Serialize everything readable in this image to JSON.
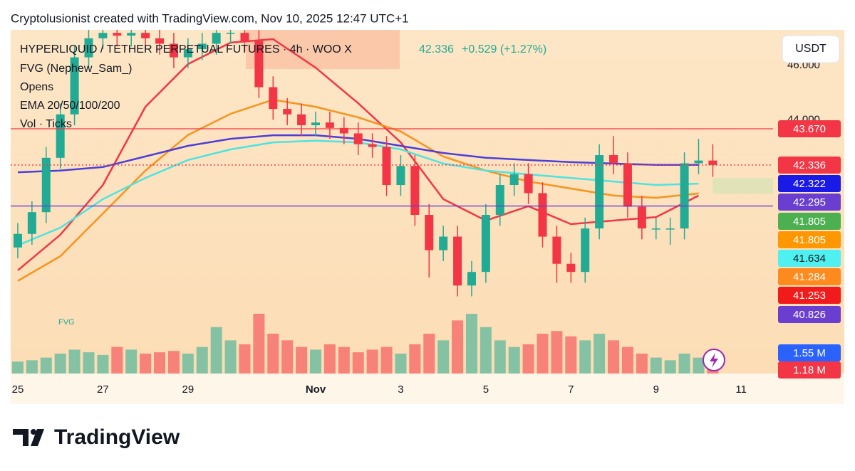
{
  "header": "Cryptolusionist created with TradingView.com, Nov 10, 2025 12:47 UTC+1",
  "footer": {
    "brand": "TradingView"
  },
  "chart_data": {
    "type": "candlestick",
    "legend": {
      "symbol": "HYPERLIQUID / TETHER PERPETUAL FUTURES · 4h · WOO X",
      "change": "+0.529 (+1.27%)",
      "indicators": [
        "FVG (Nephew_Sam_)",
        "Opens",
        "EMA 20/50/100/200",
        "Vol · Ticks"
      ]
    },
    "currency": "USDT",
    "fvg_label": "FVG",
    "up_color": "#22ab94",
    "down_color": "#f23645",
    "xlim": [
      -4,
      426
    ],
    "ylim": [
      34.66,
      47.31
    ],
    "y2lim": [
      0,
      6.7
    ],
    "grid": false,
    "xticks": [
      {
        "value": 0,
        "label": "25"
      },
      {
        "value": 48,
        "label": "27"
      },
      {
        "value": 96,
        "label": "29"
      },
      {
        "value": 168,
        "label": "Nov"
      },
      {
        "value": 216,
        "label": "3"
      },
      {
        "value": 264,
        "label": "5"
      },
      {
        "value": 312,
        "label": "7"
      },
      {
        "value": 360,
        "label": "9"
      },
      {
        "value": 408,
        "label": "11"
      }
    ],
    "yticks": [
      {
        "value": 44,
        "label": "44.000"
      },
      {
        "value": 46,
        "label": "46.000"
      }
    ],
    "x": [
      0,
      8,
      16,
      24,
      32,
      40,
      48,
      56,
      64,
      72,
      80,
      88,
      96,
      104,
      112,
      120,
      128,
      136,
      144,
      152,
      160,
      168,
      176,
      184,
      192,
      200,
      208,
      216,
      224,
      232,
      240,
      248,
      256,
      264,
      272,
      280,
      288,
      296,
      304,
      312,
      320,
      328,
      336,
      344,
      352,
      360,
      368,
      376,
      384,
      392
    ],
    "open": [
      39.3,
      39.8,
      40.6,
      42.6,
      44.2,
      46.3,
      47.0,
      47.2,
      47.1,
      47.2,
      47.0,
      46.8,
      46.3,
      46.6,
      46.8,
      47.2,
      47.2,
      46.9,
      45.2,
      44.4,
      44.2,
      43.8,
      43.9,
      43.7,
      43.5,
      43.1,
      43.0,
      41.6,
      42.3,
      40.5,
      39.2,
      39.7,
      37.9,
      38.4,
      40.5,
      41.6,
      42.0,
      41.3,
      39.7,
      38.7,
      38.4,
      40.0,
      42.7,
      42.4,
      40.8,
      40.0,
      40.0,
      40.0,
      42.4,
      42.5
    ],
    "high": [
      40.2,
      41.0,
      43.0,
      44.6,
      46.7,
      47.4,
      47.6,
      47.6,
      47.6,
      47.6,
      47.4,
      47.2,
      47.0,
      47.2,
      47.6,
      47.6,
      47.6,
      47.3,
      45.6,
      44.8,
      44.6,
      44.3,
      44.3,
      44.1,
      43.9,
      43.5,
      43.4,
      42.7,
      42.7,
      40.9,
      40.1,
      40.1,
      38.8,
      40.9,
      42.0,
      42.4,
      42.4,
      41.7,
      40.1,
      39.1,
      40.4,
      43.1,
      43.4,
      42.8,
      41.2,
      40.4,
      40.4,
      42.8,
      43.3,
      43.1
    ],
    "low": [
      38.9,
      39.4,
      40.2,
      42.2,
      43.8,
      45.9,
      46.6,
      46.7,
      46.7,
      46.6,
      46.4,
      45.9,
      45.9,
      46.2,
      46.4,
      46.8,
      46.5,
      44.8,
      44.0,
      43.8,
      43.4,
      43.4,
      43.3,
      43.1,
      42.7,
      42.6,
      41.2,
      41.2,
      40.1,
      38.2,
      38.8,
      37.5,
      37.5,
      38.0,
      40.1,
      41.2,
      40.9,
      39.3,
      38.0,
      38.0,
      38.0,
      39.6,
      42.0,
      40.4,
      39.6,
      39.6,
      39.4,
      39.6,
      42.0,
      41.9
    ],
    "close": [
      39.8,
      40.6,
      42.6,
      44.2,
      46.3,
      47.0,
      47.2,
      47.1,
      47.2,
      47.0,
      46.8,
      46.3,
      46.6,
      46.8,
      47.2,
      47.2,
      46.9,
      45.2,
      44.4,
      44.2,
      43.8,
      43.9,
      43.7,
      43.5,
      43.1,
      43.0,
      41.6,
      42.3,
      40.5,
      39.2,
      39.7,
      37.9,
      38.4,
      40.5,
      41.6,
      42.0,
      41.3,
      39.7,
      38.7,
      38.4,
      40.0,
      42.7,
      42.4,
      40.8,
      40.0,
      40.0,
      40.0,
      42.4,
      42.5,
      42.336
    ],
    "volume": [
      0.9,
      1.0,
      1.2,
      1.5,
      1.8,
      1.6,
      1.4,
      2.0,
      1.8,
      1.5,
      1.6,
      1.7,
      1.5,
      2.0,
      3.5,
      2.5,
      2.2,
      4.5,
      3.0,
      2.5,
      2.0,
      1.8,
      2.2,
      2.0,
      1.6,
      1.8,
      2.0,
      1.5,
      2.2,
      3.0,
      2.5,
      4.0,
      4.5,
      3.5,
      2.5,
      2.0,
      2.2,
      3.0,
      3.2,
      2.8,
      2.5,
      3.0,
      2.5,
      2.0,
      1.5,
      1.2,
      1.0,
      1.5,
      1.2,
      0.8
    ],
    "lines": [
      {
        "color": "#f23645",
        "x": [
          0,
          24,
          48,
          72,
          96,
          120,
          144,
          168,
          192,
          216,
          240,
          264,
          288,
          312,
          336,
          360,
          384
        ],
        "values": [
          38.46,
          39.77,
          41.6,
          44.48,
          46.05,
          46.84,
          46.97,
          45.92,
          44.61,
          43.17,
          41.08,
          40.29,
          40.82,
          40.16,
          40.29,
          40.42,
          41.21
        ]
      },
      {
        "color": "#f7931e",
        "x": [
          0,
          24,
          48,
          72,
          96,
          120,
          144,
          168,
          192,
          216,
          240,
          264,
          288,
          312,
          336,
          360,
          384
        ],
        "values": [
          38.07,
          38.98,
          40.55,
          42.13,
          43.44,
          44.22,
          44.74,
          44.48,
          44.09,
          43.57,
          42.65,
          42.13,
          41.73,
          41.47,
          41.21,
          41.13,
          41.29
        ]
      },
      {
        "color": "#4ee3e0",
        "x": [
          0,
          24,
          48,
          72,
          96,
          120,
          144,
          168,
          192,
          216,
          240,
          264,
          288,
          312,
          336,
          360,
          384
        ],
        "values": [
          39.38,
          40.03,
          41.08,
          41.86,
          42.52,
          42.91,
          43.17,
          43.23,
          43.17,
          42.91,
          42.39,
          42.13,
          41.99,
          41.86,
          41.73,
          41.6,
          41.65
        ]
      },
      {
        "color": "#4b3fd6",
        "x": [
          0,
          24,
          48,
          72,
          96,
          120,
          144,
          168,
          192,
          216,
          240,
          264,
          288,
          312,
          336,
          360,
          384
        ],
        "values": [
          42.07,
          42.13,
          42.26,
          42.65,
          43.04,
          43.3,
          43.43,
          43.43,
          43.3,
          43.04,
          42.78,
          42.6,
          42.52,
          42.44,
          42.39,
          42.34,
          42.34
        ]
      }
    ],
    "price_labels": [
      {
        "value": 43.67,
        "label": "43.670",
        "color": "#f23645",
        "line": "solid"
      },
      {
        "value": 42.336,
        "label": "42.336",
        "color": "#f23645",
        "line": "dotted"
      },
      {
        "value": 42.322,
        "label": "42.322",
        "color": "#1a1ae6"
      },
      {
        "value": 42.295,
        "label": "42.295",
        "color": "#6a3fd0"
      },
      {
        "value": 41.805,
        "label": "41.805",
        "color": "#4caf50"
      },
      {
        "value": 41.805,
        "label": "41.805",
        "color": "#ff9800"
      },
      {
        "value": 41.634,
        "label": "41.634",
        "color": "#4ef0f0"
      },
      {
        "value": 41.284,
        "label": "41.284",
        "color": "#ff8a1e"
      },
      {
        "value": 41.253,
        "label": "41.253",
        "color": "#f21b1b"
      },
      {
        "value": 40.826,
        "label": "40.826",
        "color": "#6a3fd0",
        "line": "solid"
      },
      {
        "value": 1.55,
        "label": "1.55 M",
        "color": "#2962ff"
      },
      {
        "value": 1.18,
        "label": "1.18 M",
        "color": "#f23645"
      }
    ]
  }
}
